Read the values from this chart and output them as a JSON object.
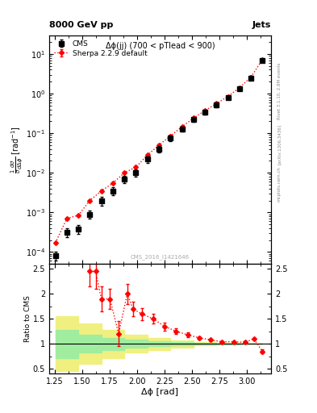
{
  "title_top": "8000 GeV pp",
  "title_right": "Jets",
  "plot_title": "Δϕ(jj) (700 < pTlead < 900)",
  "watermark": "CMS_2016_I1421646",
  "rivet_label": "Rivet 3.1.10, 2.8M events",
  "arxiv_label": "[arXiv:1306.3436]",
  "mcplots_label": "mcplots.cern.ch",
  "xlabel": "Δϕ [rad]",
  "ylabel": "$\\frac{1}{\\sigma}\\frac{d\\sigma}{d\\Delta\\phi}$ [rad$^{-1}$]",
  "ratio_ylabel": "Ratio to CMS",
  "cms_x": [
    1.2566,
    1.3614,
    1.4661,
    1.5708,
    1.6755,
    1.7802,
    1.885,
    1.9897,
    2.0944,
    2.1991,
    2.3038,
    2.4086,
    2.5133,
    2.618,
    2.7227,
    2.8274,
    2.9322,
    3.0369,
    3.1416
  ],
  "cms_y": [
    8e-05,
    0.00032,
    0.00038,
    0.0009,
    0.002,
    0.0035,
    0.007,
    0.01,
    0.022,
    0.04,
    0.075,
    0.13,
    0.22,
    0.34,
    0.52,
    0.8,
    1.35,
    2.5,
    7.0
  ],
  "cms_yerr": [
    2e-05,
    8e-05,
    0.0001,
    0.0002,
    0.0005,
    0.0008,
    0.0015,
    0.002,
    0.004,
    0.007,
    0.012,
    0.018,
    0.028,
    0.04,
    0.06,
    0.09,
    0.14,
    0.28,
    0.7
  ],
  "sherpa_x": [
    1.2566,
    1.3614,
    1.4661,
    1.5708,
    1.6755,
    1.7802,
    1.885,
    1.9897,
    2.0944,
    2.1991,
    2.3038,
    2.4086,
    2.5133,
    2.618,
    2.7227,
    2.8274,
    2.9322,
    3.0369,
    3.1416
  ],
  "sherpa_y": [
    0.00017,
    0.0007,
    0.00085,
    0.002,
    0.0035,
    0.0055,
    0.01,
    0.014,
    0.028,
    0.05,
    0.085,
    0.145,
    0.24,
    0.37,
    0.56,
    0.85,
    1.4,
    2.6,
    7.2
  ],
  "sherpa_yerr": [
    1e-05,
    3e-05,
    5e-05,
    0.0001,
    0.0002,
    0.0003,
    0.0005,
    0.0008,
    0.0015,
    0.003,
    0.005,
    0.01,
    0.016,
    0.025,
    0.038,
    0.055,
    0.09,
    0.18,
    0.5
  ],
  "ratio_x": [
    1.5708,
    1.6231,
    1.6755,
    1.754,
    1.8325,
    1.911,
    1.9635,
    2.042,
    2.1468,
    2.2516,
    2.3562,
    2.4609,
    2.5655,
    2.6701,
    2.7749,
    2.8795,
    2.9843,
    3.0628,
    3.1416
  ],
  "ratio_y": [
    2.45,
    2.45,
    1.9,
    1.9,
    1.2,
    2.0,
    1.7,
    1.6,
    1.5,
    1.35,
    1.25,
    1.18,
    1.12,
    1.08,
    1.04,
    1.04,
    1.03,
    1.1,
    0.85
  ],
  "ratio_yerr": [
    0.3,
    0.35,
    0.25,
    0.2,
    0.25,
    0.2,
    0.15,
    0.12,
    0.1,
    0.08,
    0.06,
    0.045,
    0.035,
    0.025,
    0.02,
    0.02,
    0.018,
    0.02,
    0.045
  ],
  "green_band_xedges": [
    1.2566,
    1.4661,
    1.6755,
    1.885,
    2.0944,
    2.3038,
    2.5133,
    2.7227,
    2.9322,
    3.1416
  ],
  "green_band_lo": [
    0.72,
    0.82,
    0.88,
    0.92,
    0.95,
    0.97,
    0.985,
    0.995,
    0.999,
    1.0
  ],
  "green_band_hi": [
    1.28,
    1.18,
    1.12,
    1.08,
    1.05,
    1.03,
    1.015,
    1.005,
    1.001,
    1.0
  ],
  "yellow_band_xedges": [
    1.2566,
    1.4661,
    1.6755,
    1.885,
    2.0944,
    2.3038,
    2.5133,
    2.7227,
    2.9322,
    3.1416
  ],
  "yellow_band_lo": [
    0.45,
    0.6,
    0.72,
    0.82,
    0.88,
    0.93,
    0.965,
    0.985,
    0.996,
    1.0
  ],
  "yellow_band_hi": [
    1.55,
    1.4,
    1.28,
    1.18,
    1.12,
    1.07,
    1.035,
    1.015,
    1.004,
    1.0
  ],
  "xlim": [
    1.2,
    3.22
  ],
  "ylim_main": [
    5e-05,
    30
  ],
  "ylim_ratio": [
    0.4,
    2.6
  ],
  "cms_color": "black",
  "sherpa_color": "red",
  "green_color": "#a0eda0",
  "yellow_color": "#f0f080",
  "background_color": "white"
}
